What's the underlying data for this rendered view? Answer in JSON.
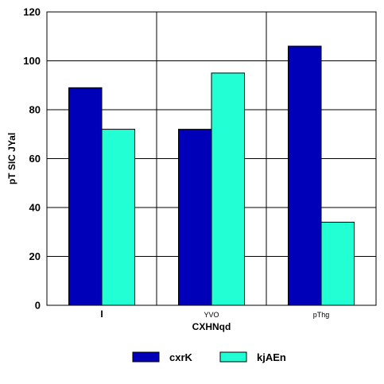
{
  "chart_data": {
    "type": "bar",
    "title": "",
    "xlabel": "CXHNqd",
    "ylabel": "pT SIC JYal",
    "categories": [
      "I",
      "YVO",
      "pThg"
    ],
    "series": [
      {
        "name": "cxrK",
        "values": [
          89,
          72,
          106
        ],
        "color": "#0000B8"
      },
      {
        "name": "kjAEn",
        "values": [
          72,
          95,
          34
        ],
        "color": "#22FFD4"
      }
    ],
    "ylim": [
      0,
      120
    ],
    "yticks": [
      0,
      20,
      40,
      60,
      80,
      100,
      120
    ],
    "grid": true,
    "legend_position": "bottom"
  }
}
